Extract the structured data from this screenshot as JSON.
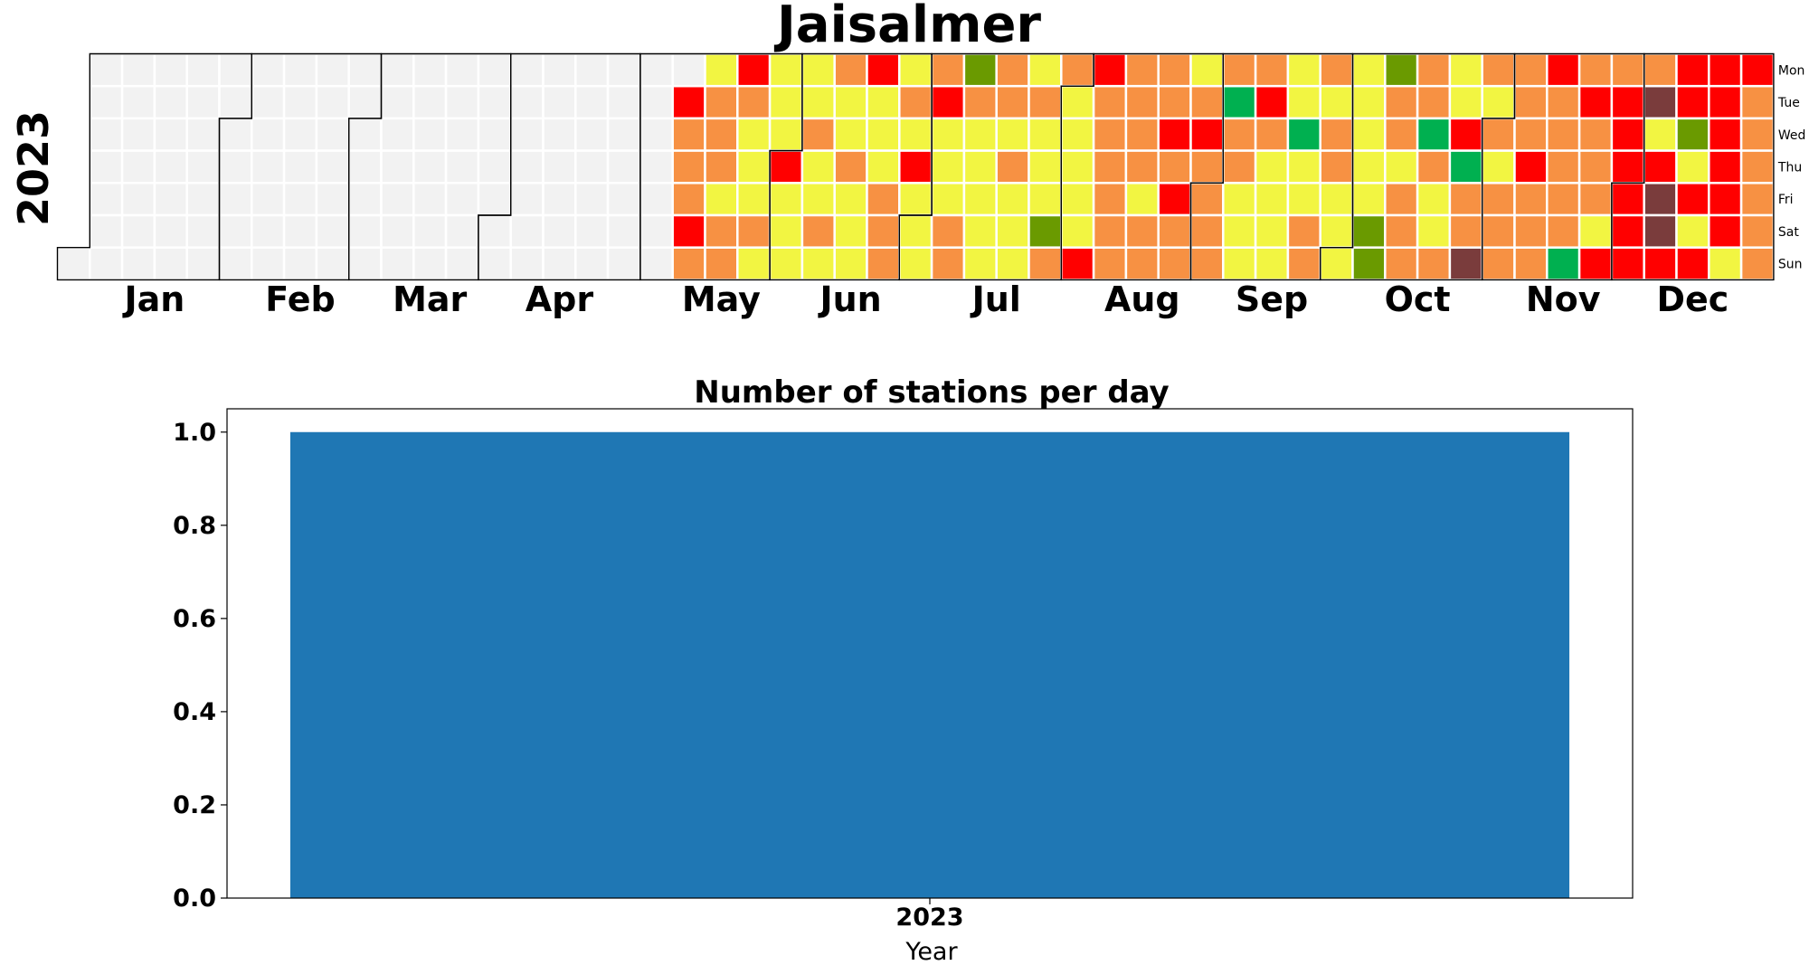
{
  "calendar": {
    "title": "Jaisalmer",
    "year_label": "2023",
    "months": [
      "Jan",
      "Feb",
      "Mar",
      "Apr",
      "May",
      "Jun",
      "Jul",
      "Aug",
      "Sep",
      "Oct",
      "Nov",
      "Dec"
    ],
    "weekdays": [
      "Mon",
      "Tue",
      "Wed",
      "Thu",
      "Fri",
      "Sat",
      "Sun"
    ],
    "colors": {
      "none": "#f2f2f2",
      "1": "#00b050",
      "2": "#6a9a00",
      "3": "#f2f542",
      "4": "#f79143",
      "5": "#ff0000",
      "6": "#7a3c3c"
    },
    "data_start_date": "2023-05-09",
    "levels": "5444543444344543334333353333343343433433353334443435333453334424333334434333343332443333355444444444434444545443454444414433345433333313344434433333333222443444441433433514464343444444544454444414544435455555546356655523535555555354444444445544444354545533455446556354"
  },
  "chart_data": {
    "type": "bar",
    "title": "Number of stations per day",
    "xlabel": "Year",
    "ylabel": "",
    "categories": [
      "2023"
    ],
    "values": [
      1.0
    ],
    "ylim": [
      0,
      1.05
    ],
    "yticks": [
      "0.0",
      "0.2",
      "0.4",
      "0.6",
      "0.8",
      "1.0"
    ],
    "bar_color": "#1f77b4",
    "grid": false
  }
}
